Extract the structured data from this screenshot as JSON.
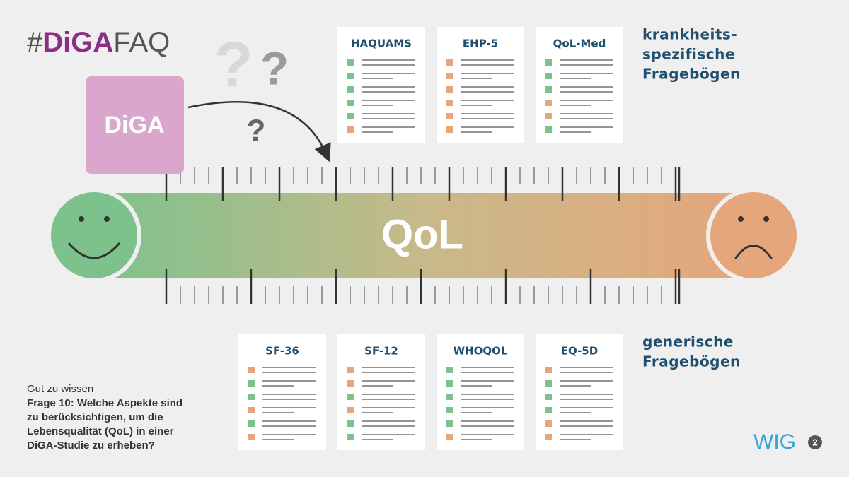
{
  "header": {
    "hash": "#",
    "brand": "DiGA",
    "suffix": "FAQ"
  },
  "question_marks": [
    "?",
    "?",
    "?"
  ],
  "diga_box": {
    "label": "DiGA"
  },
  "scale": {
    "label": "QoL"
  },
  "specific": {
    "caption_lines": [
      "krankheits-",
      "spezifische",
      "Fragebögen"
    ],
    "cards": [
      "HAQUAMS",
      "EHP-5",
      "QoL-Med"
    ]
  },
  "generic": {
    "caption_lines": [
      "generische",
      "Fragebögen"
    ],
    "cards": [
      "SF-36",
      "SF-12",
      "WHOQOL",
      "EQ-5D"
    ]
  },
  "note": {
    "kicker": "Gut zu wissen",
    "question_lines": [
      "Frage 10: Welche Aspekte sind",
      "zu berücksichtigen, um die",
      "Lebensqualität (QoL) in einer",
      "DiGA-Studie zu erheben?"
    ]
  },
  "logo": {
    "text": "WIG",
    "badge": "2"
  }
}
